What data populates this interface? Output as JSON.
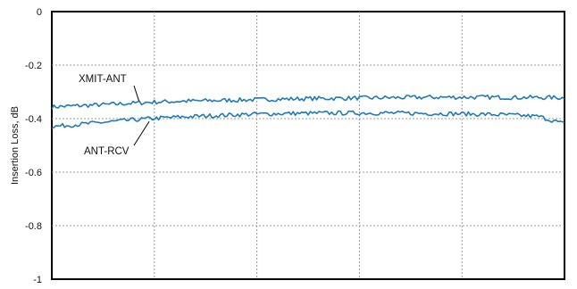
{
  "chart_data": {
    "type": "line",
    "title": "",
    "xlabel": "",
    "ylabel": "Insertion Loss, dB",
    "xlim": [
      0,
      1
    ],
    "ylim": [
      -1,
      0
    ],
    "yticks": [
      "0",
      "-0.2",
      "-0.4",
      "-0.6",
      "-0.8",
      "-1"
    ],
    "ytick_values": [
      0,
      -0.2,
      -0.4,
      -0.6,
      -0.8,
      -1
    ],
    "xgrid_count": 5,
    "grid": true,
    "line_color": "#1f7bb6",
    "series": [
      {
        "name": "XMIT-ANT",
        "x": [
          0,
          0.05,
          0.1,
          0.15,
          0.2,
          0.25,
          0.3,
          0.35,
          0.4,
          0.45,
          0.5,
          0.55,
          0.6,
          0.65,
          0.7,
          0.75,
          0.8,
          0.85,
          0.9,
          0.95,
          1.0
        ],
        "values": [
          -0.356,
          -0.352,
          -0.348,
          -0.343,
          -0.338,
          -0.335,
          -0.333,
          -0.331,
          -0.329,
          -0.327,
          -0.325,
          -0.324,
          -0.323,
          -0.322,
          -0.321,
          -0.32,
          -0.32,
          -0.32,
          -0.321,
          -0.321,
          -0.322
        ]
      },
      {
        "name": "ANT-RCV",
        "x": [
          0,
          0.05,
          0.1,
          0.15,
          0.2,
          0.25,
          0.3,
          0.35,
          0.4,
          0.45,
          0.5,
          0.55,
          0.6,
          0.65,
          0.7,
          0.75,
          0.8,
          0.85,
          0.9,
          0.95,
          1.0
        ],
        "values": [
          -0.43,
          -0.422,
          -0.414,
          -0.406,
          -0.399,
          -0.394,
          -0.39,
          -0.386,
          -0.383,
          -0.381,
          -0.38,
          -0.379,
          -0.379,
          -0.379,
          -0.38,
          -0.381,
          -0.382,
          -0.384,
          -0.387,
          -0.392,
          -0.42
        ]
      }
    ],
    "annotations": [
      {
        "text": "XMIT-ANT",
        "target_series": 0
      },
      {
        "text": "ANT-RCV",
        "target_series": 1
      }
    ]
  }
}
